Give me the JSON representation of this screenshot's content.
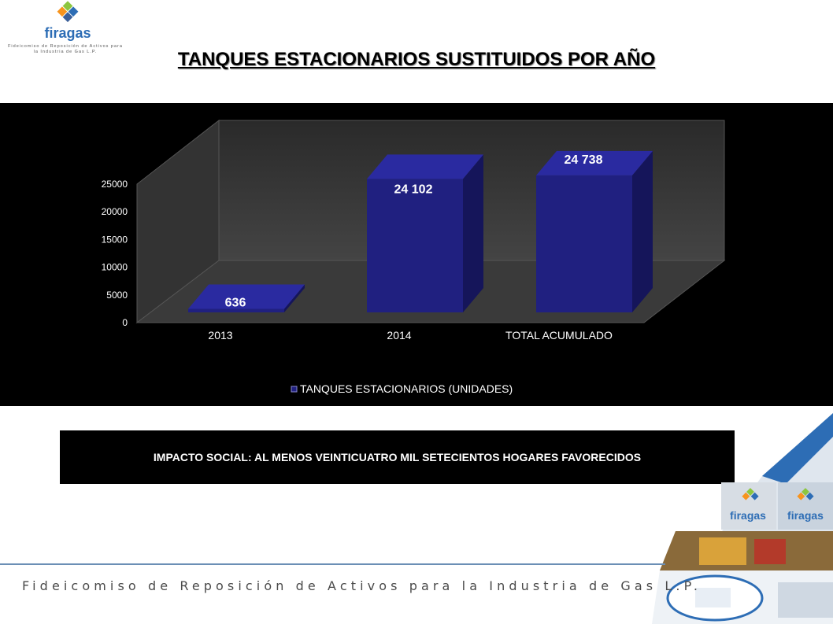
{
  "header": {
    "logo_text": "firagas",
    "logo_tagline": "Fideicomiso de Reposición de Activos para la Industria de Gas L.P.",
    "title": "TANQUES ESTACIONARIOS SUSTITUIDOS POR AÑO"
  },
  "chart_data": {
    "type": "bar",
    "style": "3d-column",
    "categories": [
      "2013",
      "2014",
      "TOTAL ACUMULADO"
    ],
    "series": [
      {
        "name": "TANQUES ESTACIONARIOS (UNIDADES)",
        "values": [
          636,
          24102,
          24738
        ],
        "color": "#202080"
      }
    ],
    "data_labels": [
      "636",
      "24 102",
      "24 738"
    ],
    "y_ticks": [
      "0",
      "5000",
      "10000",
      "15000",
      "20000",
      "25000"
    ],
    "ylim": [
      0,
      25000
    ],
    "legend_position": "bottom",
    "background": "#000000"
  },
  "callout": {
    "text": "IMPACTO SOCIAL: AL MENOS VEINTICUATRO MIL SETECIENTOS HOGARES FAVORECIDOS"
  },
  "footer": {
    "text": "Fideicomiso de Reposición de Activos para la Industria de Gas L.P."
  },
  "colors": {
    "accent_blue": "#202080",
    "footer_line": "#6b8fb5",
    "logo_green": "#8cc63f",
    "logo_orange": "#f7941d",
    "logo_blue": "#2d6db5"
  }
}
